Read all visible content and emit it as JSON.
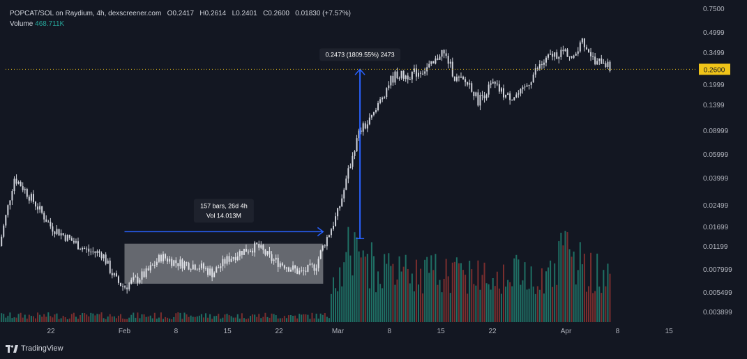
{
  "header": {
    "symbol": "POPCAT/SOL on Raydium, 4h, dexscreener.com",
    "o_label": "O",
    "o": "0.2417",
    "h_label": "H",
    "h": "0.2614",
    "l_label": "L",
    "l": "0.2401",
    "c_label": "C",
    "c": "0.2600",
    "change": "0.01830 (+7.57%)",
    "volume_label": "Volume",
    "volume": "468.711K"
  },
  "branding": {
    "name": "TradingView"
  },
  "colors": {
    "background": "#131722",
    "candle": "#d1d4dc",
    "volume_up": "#1f6f64",
    "volume_down": "#7a2e2e",
    "measure": "#2962ff",
    "last_price": "#f0c419"
  },
  "chart_data": {
    "type": "candlestick",
    "scale": "log",
    "y_ticks": [
      "0.7500",
      "0.4999",
      "0.3499",
      "0.1999",
      "0.1399",
      "0.08999",
      "0.05999",
      "0.03999",
      "0.02499",
      "0.01699",
      "0.01199",
      "0.007999",
      "0.005499",
      "0.003899"
    ],
    "x_ticks": [
      "22",
      "Feb",
      "8",
      "15",
      "22",
      "Mar",
      "8",
      "15",
      "22",
      "Apr",
      "8",
      "15"
    ],
    "last_price": "0.2600",
    "price_path": [
      [
        "Jan 15",
        0.012
      ],
      [
        "Jan 16",
        0.022
      ],
      [
        "Jan 17",
        0.04
      ],
      [
        "Jan 18",
        0.035
      ],
      [
        "Jan 20",
        0.025
      ],
      [
        "Jan 22",
        0.017
      ],
      [
        "Jan 25",
        0.013
      ],
      [
        "Jan 27",
        0.011
      ],
      [
        "Jan 29",
        0.0105
      ],
      [
        "Jan 30",
        0.008
      ],
      [
        "Jan 31",
        0.0065
      ],
      [
        "Feb 1",
        0.006
      ],
      [
        "Feb 4",
        0.0075
      ],
      [
        "Feb 6",
        0.01
      ],
      [
        "Feb 8",
        0.009
      ],
      [
        "Feb 11",
        0.0085
      ],
      [
        "Feb 13",
        0.0075
      ],
      [
        "Feb 15",
        0.0095
      ],
      [
        "Feb 17",
        0.011
      ],
      [
        "Feb 19",
        0.012
      ],
      [
        "Feb 21",
        0.0095
      ],
      [
        "Feb 23",
        0.0085
      ],
      [
        "Feb 25",
        0.0075
      ],
      [
        "Feb 27",
        0.0085
      ],
      [
        "Feb 28",
        0.012
      ],
      [
        "Feb 29",
        0.016
      ],
      [
        "Mar 1",
        0.022
      ],
      [
        "Mar 2",
        0.035
      ],
      [
        "Mar 3",
        0.06
      ],
      [
        "Mar 4",
        0.09
      ],
      [
        "Mar 5",
        0.1
      ],
      [
        "Mar 6",
        0.12
      ],
      [
        "Mar 7",
        0.16
      ],
      [
        "Mar 8",
        0.21
      ],
      [
        "Mar 9",
        0.24
      ],
      [
        "Mar 10",
        0.23
      ],
      [
        "Mar 12",
        0.25
      ],
      [
        "Mar 14",
        0.28
      ],
      [
        "Mar 15",
        0.36
      ],
      [
        "Mar 16",
        0.3
      ],
      [
        "Mar 17",
        0.22
      ],
      [
        "Mar 19",
        0.2
      ],
      [
        "Mar 20",
        0.15
      ],
      [
        "Mar 22",
        0.2
      ],
      [
        "Mar 24",
        0.16
      ],
      [
        "Mar 26",
        0.17
      ],
      [
        "Mar 28",
        0.26
      ],
      [
        "Mar 30",
        0.33
      ],
      [
        "Apr 1",
        0.36
      ],
      [
        "Apr 2",
        0.3
      ],
      [
        "Apr 3",
        0.45
      ],
      [
        "Apr 4",
        0.38
      ],
      [
        "Apr 5",
        0.28
      ],
      [
        "Apr 6",
        0.31
      ],
      [
        "Apr 7",
        0.26
      ]
    ],
    "annotations": {
      "range_box": {
        "start": "Feb 1",
        "end": "Feb 28",
        "top": 0.0125,
        "bottom": 0.0063
      },
      "horizontal_measure": {
        "start": "Feb 1",
        "end": "Feb 28",
        "price": 0.0155,
        "label_line1": "157 bars, 26d 4h",
        "label_line2": "Vol 14.013M"
      },
      "vertical_measure": {
        "date": "Mar 4",
        "from": 0.0137,
        "to": 0.26,
        "label": "0.2473 (1809.55%) 2473"
      }
    }
  }
}
